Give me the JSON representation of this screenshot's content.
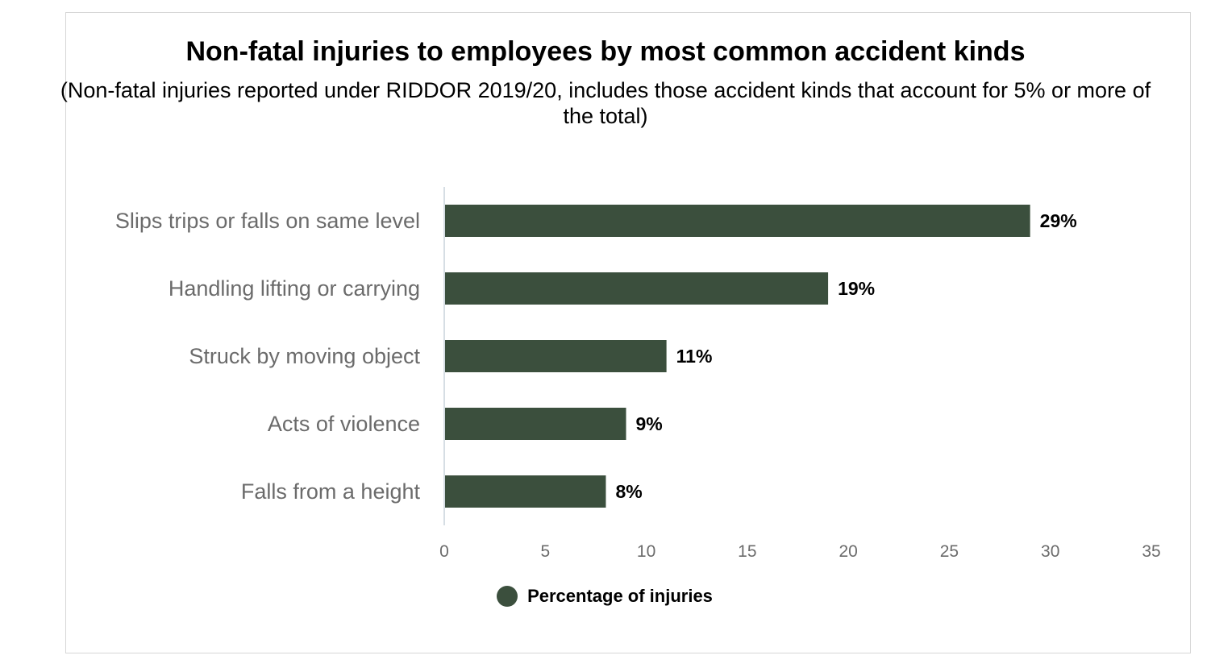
{
  "chart_data": {
    "type": "bar",
    "orientation": "horizontal",
    "title": "Non-fatal injuries to employees by most common accident kinds",
    "subtitle": "(Non-fatal injuries reported under RIDDOR 2019/20, includes those accident kinds that account for 5% or more of the total)",
    "categories": [
      "Slips trips or falls on same level",
      "Handling lifting or carrying",
      "Struck by moving object",
      "Acts of violence",
      "Falls from a height"
    ],
    "series": [
      {
        "name": "Percentage of injuries",
        "values": [
          29,
          19,
          11,
          9,
          8
        ],
        "labels": [
          "29%",
          "19%",
          "11%",
          "9%",
          "8%"
        ],
        "color": "#3b4f3d"
      }
    ],
    "xlim": [
      0,
      35
    ],
    "xticks": [
      "0",
      "5",
      "10",
      "15",
      "20",
      "25",
      "30",
      "35"
    ],
    "xtick_values": [
      0,
      5,
      10,
      15,
      20,
      25,
      30,
      35
    ],
    "grid": false,
    "legend_position": "bottom"
  }
}
